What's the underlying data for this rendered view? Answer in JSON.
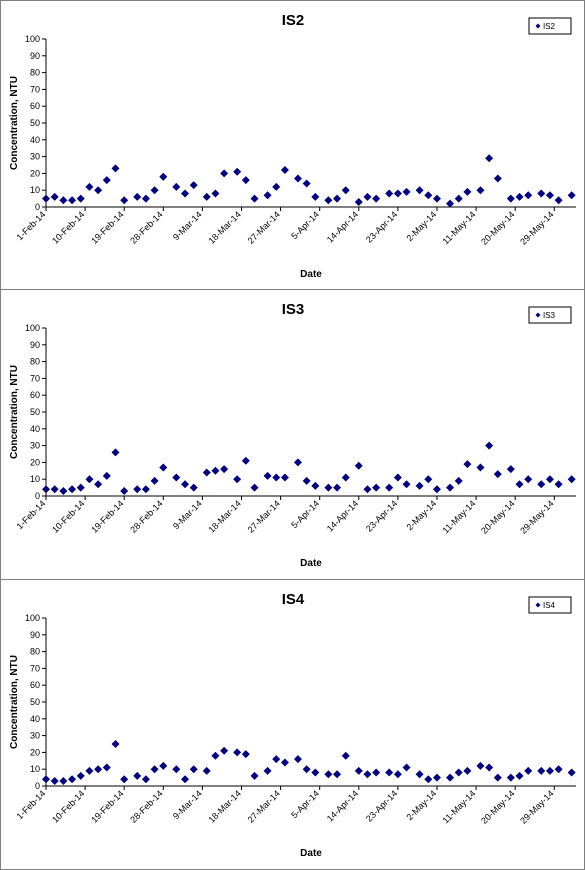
{
  "chart_data": [
    {
      "type": "scatter",
      "title": "IS2",
      "xlabel": "Date",
      "ylabel": "Concentration, NTU",
      "legend": "IS2",
      "legend_position": "top-right",
      "marker_color": "#000080",
      "ylim": [
        0,
        100
      ],
      "yticks": [
        0,
        10,
        20,
        30,
        40,
        50,
        60,
        70,
        80,
        90,
        100
      ],
      "xlim": [
        "2014-02-01",
        "2014-06-03"
      ],
      "xtick_labels": [
        "1-Feb-14",
        "10-Feb-14",
        "19-Feb-14",
        "28-Feb-14",
        "9-Mar-14",
        "18-Mar-14",
        "27-Mar-14",
        "5-Apr-14",
        "14-Apr-14",
        "23-Apr-14",
        "2-May-14",
        "11-May-14",
        "20-May-14",
        "29-May-14"
      ],
      "xtick_dates": [
        "2014-02-01",
        "2014-02-10",
        "2014-02-19",
        "2014-02-28",
        "2014-03-09",
        "2014-03-18",
        "2014-03-27",
        "2014-04-05",
        "2014-04-14",
        "2014-04-23",
        "2014-05-02",
        "2014-05-11",
        "2014-05-20",
        "2014-05-29"
      ],
      "x": [
        "2014-02-01",
        "2014-02-03",
        "2014-02-05",
        "2014-02-07",
        "2014-02-09",
        "2014-02-11",
        "2014-02-13",
        "2014-02-15",
        "2014-02-17",
        "2014-02-19",
        "2014-02-22",
        "2014-02-24",
        "2014-02-26",
        "2014-02-28",
        "2014-03-03",
        "2014-03-05",
        "2014-03-07",
        "2014-03-10",
        "2014-03-12",
        "2014-03-14",
        "2014-03-17",
        "2014-03-19",
        "2014-03-21",
        "2014-03-24",
        "2014-03-26",
        "2014-03-28",
        "2014-03-31",
        "2014-04-02",
        "2014-04-04",
        "2014-04-07",
        "2014-04-09",
        "2014-04-11",
        "2014-04-14",
        "2014-04-16",
        "2014-04-18",
        "2014-04-21",
        "2014-04-23",
        "2014-04-25",
        "2014-04-28",
        "2014-04-30",
        "2014-05-02",
        "2014-05-05",
        "2014-05-07",
        "2014-05-09",
        "2014-05-12",
        "2014-05-14",
        "2014-05-16",
        "2014-05-19",
        "2014-05-21",
        "2014-05-23",
        "2014-05-26",
        "2014-05-28",
        "2014-05-30",
        "2014-06-02"
      ],
      "y": [
        5,
        6,
        4,
        4,
        5,
        12,
        10,
        16,
        23,
        4,
        6,
        5,
        10,
        18,
        12,
        8,
        13,
        6,
        8,
        20,
        21,
        16,
        5,
        7,
        12,
        22,
        17,
        14,
        6,
        4,
        5,
        10,
        3,
        6,
        5,
        8,
        8,
        9,
        10,
        7,
        5,
        2,
        5,
        9,
        10,
        29,
        17,
        5,
        6,
        7,
        8,
        7,
        4,
        7
      ]
    },
    {
      "type": "scatter",
      "title": "IS3",
      "xlabel": "Date",
      "ylabel": "Concentration, NTU",
      "legend": "IS3",
      "legend_position": "top-right",
      "marker_color": "#000080",
      "ylim": [
        0,
        100
      ],
      "yticks": [
        0,
        10,
        20,
        30,
        40,
        50,
        60,
        70,
        80,
        90,
        100
      ],
      "xlim": [
        "2014-02-01",
        "2014-06-03"
      ],
      "xtick_labels": [
        "1-Feb-14",
        "10-Feb-14",
        "19-Feb-14",
        "28-Feb-14",
        "9-Mar-14",
        "18-Mar-14",
        "27-Mar-14",
        "5-Apr-14",
        "14-Apr-14",
        "23-Apr-14",
        "2-May-14",
        "11-May-14",
        "20-May-14",
        "29-May-14"
      ],
      "xtick_dates": [
        "2014-02-01",
        "2014-02-10",
        "2014-02-19",
        "2014-02-28",
        "2014-03-09",
        "2014-03-18",
        "2014-03-27",
        "2014-04-05",
        "2014-04-14",
        "2014-04-23",
        "2014-05-02",
        "2014-05-11",
        "2014-05-20",
        "2014-05-29"
      ],
      "x": [
        "2014-02-01",
        "2014-02-03",
        "2014-02-05",
        "2014-02-07",
        "2014-02-09",
        "2014-02-11",
        "2014-02-13",
        "2014-02-15",
        "2014-02-17",
        "2014-02-19",
        "2014-02-22",
        "2014-02-24",
        "2014-02-26",
        "2014-02-28",
        "2014-03-03",
        "2014-03-05",
        "2014-03-07",
        "2014-03-10",
        "2014-03-12",
        "2014-03-14",
        "2014-03-17",
        "2014-03-19",
        "2014-03-21",
        "2014-03-24",
        "2014-03-26",
        "2014-03-28",
        "2014-03-31",
        "2014-04-02",
        "2014-04-04",
        "2014-04-07",
        "2014-04-09",
        "2014-04-11",
        "2014-04-14",
        "2014-04-16",
        "2014-04-18",
        "2014-04-21",
        "2014-04-23",
        "2014-04-25",
        "2014-04-28",
        "2014-04-30",
        "2014-05-02",
        "2014-05-05",
        "2014-05-07",
        "2014-05-09",
        "2014-05-12",
        "2014-05-14",
        "2014-05-16",
        "2014-05-19",
        "2014-05-21",
        "2014-05-23",
        "2014-05-26",
        "2014-05-28",
        "2014-05-30",
        "2014-06-02"
      ],
      "y": [
        4,
        4,
        3,
        4,
        5,
        10,
        7,
        12,
        26,
        3,
        4,
        4,
        9,
        17,
        11,
        7,
        5,
        14,
        15,
        16,
        10,
        21,
        5,
        12,
        11,
        11,
        20,
        9,
        6,
        5,
        5,
        11,
        18,
        4,
        5,
        5,
        11,
        7,
        6,
        10,
        4,
        5,
        9,
        19,
        17,
        30,
        13,
        16,
        7,
        10,
        7,
        10,
        7,
        10
      ]
    },
    {
      "type": "scatter",
      "title": "IS4",
      "xlabel": "Date",
      "ylabel": "Concentration, NTU",
      "legend": "IS4",
      "legend_position": "top-right",
      "marker_color": "#000080",
      "ylim": [
        0,
        100
      ],
      "yticks": [
        0,
        10,
        20,
        30,
        40,
        50,
        60,
        70,
        80,
        90,
        100
      ],
      "xlim": [
        "2014-02-01",
        "2014-06-03"
      ],
      "xtick_labels": [
        "1-Feb-14",
        "10-Feb-14",
        "19-Feb-14",
        "28-Feb-14",
        "9-Mar-14",
        "18-Mar-14",
        "27-Mar-14",
        "5-Apr-14",
        "14-Apr-14",
        "23-Apr-14",
        "2-May-14",
        "11-May-14",
        "20-May-14",
        "29-May-14"
      ],
      "xtick_dates": [
        "2014-02-01",
        "2014-02-10",
        "2014-02-19",
        "2014-02-28",
        "2014-03-09",
        "2014-03-18",
        "2014-03-27",
        "2014-04-05",
        "2014-04-14",
        "2014-04-23",
        "2014-05-02",
        "2014-05-11",
        "2014-05-20",
        "2014-05-29"
      ],
      "x": [
        "2014-02-01",
        "2014-02-03",
        "2014-02-05",
        "2014-02-07",
        "2014-02-09",
        "2014-02-11",
        "2014-02-13",
        "2014-02-15",
        "2014-02-17",
        "2014-02-19",
        "2014-02-22",
        "2014-02-24",
        "2014-02-26",
        "2014-02-28",
        "2014-03-03",
        "2014-03-05",
        "2014-03-07",
        "2014-03-10",
        "2014-03-12",
        "2014-03-14",
        "2014-03-17",
        "2014-03-19",
        "2014-03-21",
        "2014-03-24",
        "2014-03-26",
        "2014-03-28",
        "2014-03-31",
        "2014-04-02",
        "2014-04-04",
        "2014-04-07",
        "2014-04-09",
        "2014-04-11",
        "2014-04-14",
        "2014-04-16",
        "2014-04-18",
        "2014-04-21",
        "2014-04-23",
        "2014-04-25",
        "2014-04-28",
        "2014-04-30",
        "2014-05-02",
        "2014-05-05",
        "2014-05-07",
        "2014-05-09",
        "2014-05-12",
        "2014-05-14",
        "2014-05-16",
        "2014-05-19",
        "2014-05-21",
        "2014-05-23",
        "2014-05-26",
        "2014-05-28",
        "2014-05-30",
        "2014-06-02"
      ],
      "y": [
        4,
        3,
        3,
        4,
        6,
        9,
        10,
        11,
        25,
        4,
        6,
        4,
        10,
        12,
        10,
        4,
        10,
        9,
        18,
        21,
        20,
        19,
        6,
        9,
        16,
        14,
        16,
        10,
        8,
        7,
        7,
        18,
        9,
        7,
        8,
        8,
        7,
        11,
        7,
        4,
        5,
        5,
        8,
        9,
        12,
        11,
        5,
        5,
        6,
        9,
        9,
        9,
        10,
        8
      ]
    }
  ]
}
